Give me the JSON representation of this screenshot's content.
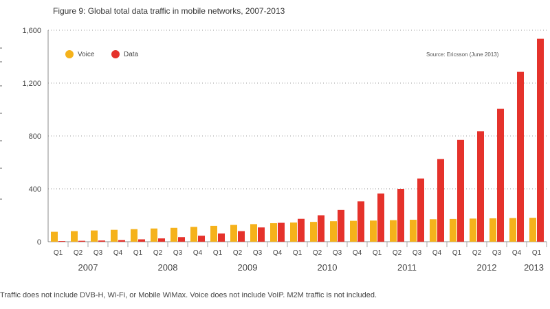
{
  "title": "Figure 9: Global total data traffic in mobile networks, 2007-2013",
  "source": "Source: Ericsson (June 2013)",
  "footnote": "Traffic does not include DVB-H, Wi-Fi, or Mobile WiMax. Voice does not include VoIP. M2M traffic is not included.",
  "colors": {
    "voice": "#F5B21B",
    "data": "#E5322B",
    "grid": "#9a9a9a",
    "axis": "#888888"
  },
  "chart_data": {
    "type": "bar",
    "title": "Figure 9: Global total data traffic in mobile networks, 2007-2013",
    "xlabel": "",
    "ylabel": "",
    "ylim": [
      0,
      1600
    ],
    "y_ticks": [
      0,
      400,
      800,
      1200,
      1600
    ],
    "y_tick_labels": [
      "0",
      "400",
      "800",
      "1,200",
      "1,600"
    ],
    "grid": true,
    "legend": "top-left",
    "categories": [
      "Q1",
      "Q2",
      "Q3",
      "Q4",
      "Q1",
      "Q2",
      "Q3",
      "Q4",
      "Q1",
      "Q2",
      "Q3",
      "Q4",
      "Q1",
      "Q2",
      "Q3",
      "Q4",
      "Q1",
      "Q2",
      "Q3",
      "Q4",
      "Q1",
      "Q2",
      "Q3",
      "Q4",
      "Q1"
    ],
    "years": [
      {
        "label": "2007",
        "start": 0,
        "end": 3
      },
      {
        "label": "2008",
        "start": 4,
        "end": 7
      },
      {
        "label": "2009",
        "start": 8,
        "end": 11
      },
      {
        "label": "2010",
        "start": 12,
        "end": 15
      },
      {
        "label": "2011",
        "start": 16,
        "end": 19
      },
      {
        "label": "2012",
        "start": 20,
        "end": 23
      },
      {
        "label": "2013",
        "start": 24,
        "end": 24
      }
    ],
    "series": [
      {
        "name": "Voice",
        "color": "#F5B21B",
        "values": [
          75,
          80,
          85,
          90,
          95,
          100,
          105,
          112,
          120,
          127,
          133,
          140,
          145,
          150,
          155,
          158,
          160,
          163,
          166,
          170,
          172,
          175,
          177,
          179,
          181
        ]
      },
      {
        "name": "Data",
        "color": "#E5322B",
        "values": [
          5,
          7,
          9,
          12,
          18,
          25,
          35,
          45,
          62,
          80,
          108,
          143,
          173,
          200,
          240,
          305,
          365,
          400,
          478,
          625,
          770,
          835,
          1005,
          1285,
          1535
        ]
      }
    ]
  }
}
